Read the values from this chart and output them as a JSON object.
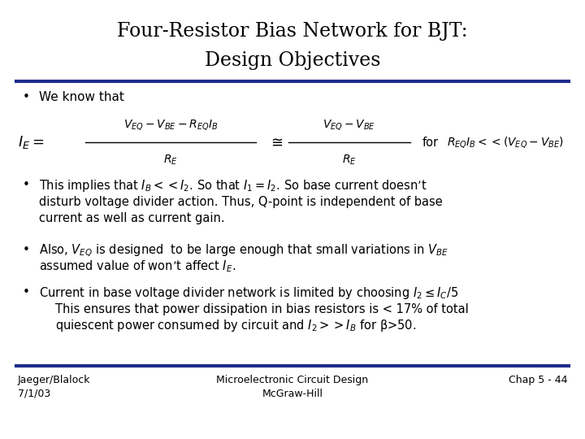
{
  "title_line1": "Four-Resistor Bias Network for BJT:",
  "title_line2": "Design Objectives",
  "bg_color": "#FFFFFF",
  "title_color": "#000000",
  "text_color": "#000000",
  "line_color": "#1F2D8A",
  "bullet1": "We know that",
  "bullet2_line1": "This implies that $I_B << I_2$. So that $I_1 = I_2$. So base current doesn’t",
  "bullet2_line2": "disturb voltage divider action. Thus, Q-point is independent of base",
  "bullet2_line3": "current as well as current gain.",
  "bullet3_line1": "Also, $V_{EQ}$ is designed  to be large enough that small variations in $V_{BE}$",
  "bullet3_line2": "assumed value of won’t affect $I_E$.",
  "bullet4_line1": "Current in base voltage divider network is limited by choosing $I_2 \\leq I_C/5$",
  "bullet4_line2": "This ensures that power dissipation in bias resistors is < 17% of total",
  "bullet4_line3": "quiescent power consumed by circuit and $I_2 >> I_B$ for β>50.",
  "footer_left1": "Jaeger/Blalock",
  "footer_left2": "7/1/03",
  "footer_center1": "Microelectronic Circuit Design",
  "footer_center2": "McGraw-Hill",
  "footer_right": "Chap 5 - 44"
}
